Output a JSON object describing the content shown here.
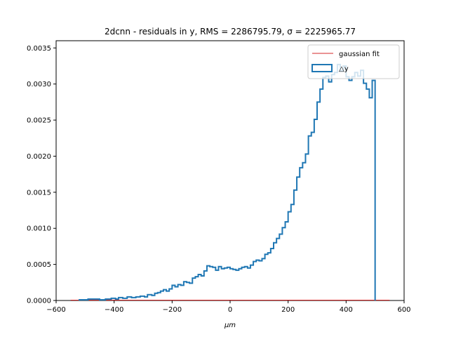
{
  "chart_data": {
    "type": "histogram",
    "title": "2dcnn - residuals in y, RMS = 2286795.79, σ = 2225965.77",
    "xlabel": "μm",
    "ylabel": "",
    "xlim": [
      -600,
      600
    ],
    "ylim": [
      0,
      0.0036
    ],
    "xticks": [
      "−600",
      "−400",
      "−200",
      "0",
      "200",
      "400",
      "600"
    ],
    "xtick_values": [
      -600,
      -400,
      -200,
      0,
      200,
      400,
      600
    ],
    "yticks": [
      "0.0000",
      "0.0005",
      "0.0010",
      "0.0015",
      "0.0020",
      "0.0025",
      "0.0030",
      "0.0035"
    ],
    "ytick_values": [
      0,
      0.0005,
      0.001,
      0.0015,
      0.002,
      0.0025,
      0.003,
      0.0035
    ],
    "legend": {
      "placement": "top-right",
      "entries": [
        "gaussian fit",
        "△y"
      ]
    },
    "series": [
      {
        "name": "△y",
        "style": "step",
        "color": "#1f77b4",
        "bin_edges": [
          -520,
          -500,
          -480,
          -460,
          -440,
          -420,
          -400,
          -380,
          -360,
          -340,
          -320,
          -300,
          -280,
          -260,
          -240,
          -220,
          -200,
          -180,
          -160,
          -140,
          -120,
          -100,
          -80,
          -60,
          -40,
          -20,
          0,
          20,
          40,
          60,
          80,
          100,
          120,
          140,
          160,
          180,
          200,
          220,
          240,
          260,
          280,
          300,
          320,
          340,
          360,
          380,
          400,
          420,
          440,
          460,
          480,
          500
        ],
        "values": [
          1e-05,
          2e-05,
          2e-05,
          1e-05,
          2e-05,
          3e-05,
          4e-05,
          4e-05,
          5e-05,
          6e-05,
          7e-05,
          0.0001,
          0.00012,
          0.00017,
          0.00021,
          0.00026,
          0.00025,
          0.00034,
          0.00038,
          0.00041,
          0.00046,
          0.00045,
          0.00043,
          0.00045,
          0.00044,
          0.00042,
          0.00044,
          0.00046,
          0.00048,
          0.00053,
          0.00058,
          0.00063,
          0.00072,
          0.00083,
          0.00096,
          0.00114,
          0.00132,
          0.00157,
          0.00186,
          0.00212,
          0.00262,
          0.00293,
          0.00313,
          0.00318,
          0.00328,
          0.00312,
          0.00318,
          0.003,
          0.00312,
          0.00285,
          0.00308
        ],
        "fine_steps": [
          [
            -520,
            1e-05
          ],
          [
            -500,
            1e-05
          ],
          [
            -490,
            2e-05
          ],
          [
            -470,
            2e-05
          ],
          [
            -450,
            1e-05
          ],
          [
            -430,
            2e-05
          ],
          [
            -410,
            3e-05
          ],
          [
            -395,
            2e-05
          ],
          [
            -385,
            4e-05
          ],
          [
            -370,
            3e-05
          ],
          [
            -355,
            5e-05
          ],
          [
            -340,
            4e-05
          ],
          [
            -325,
            5e-05
          ],
          [
            -310,
            6e-05
          ],
          [
            -295,
            5e-05
          ],
          [
            -285,
            8e-05
          ],
          [
            -270,
            7e-05
          ],
          [
            -260,
            0.0001
          ],
          [
            -250,
            0.00011
          ],
          [
            -240,
            0.00013
          ],
          [
            -230,
            0.00015
          ],
          [
            -220,
            0.00013
          ],
          [
            -210,
            0.00016
          ],
          [
            -200,
            0.00021
          ],
          [
            -190,
            0.00019
          ],
          [
            -180,
            0.00022
          ],
          [
            -170,
            0.00021
          ],
          [
            -160,
            0.00026
          ],
          [
            -150,
            0.00025
          ],
          [
            -140,
            0.00024
          ],
          [
            -130,
            0.00031
          ],
          [
            -120,
            0.00033
          ],
          [
            -110,
            0.00036
          ],
          [
            -100,
            0.00034
          ],
          [
            -90,
            0.00041
          ],
          [
            -80,
            0.00048
          ],
          [
            -70,
            0.00047
          ],
          [
            -60,
            0.00046
          ],
          [
            -50,
            0.00042
          ],
          [
            -40,
            0.00047
          ],
          [
            -30,
            0.00044
          ],
          [
            -20,
            0.00045
          ],
          [
            -10,
            0.00046
          ],
          [
            0,
            0.00044
          ],
          [
            10,
            0.00043
          ],
          [
            20,
            0.00042
          ],
          [
            30,
            0.00044
          ],
          [
            40,
            0.00046
          ],
          [
            50,
            0.00047
          ],
          [
            60,
            0.00045
          ],
          [
            70,
            0.00049
          ],
          [
            80,
            0.00054
          ],
          [
            90,
            0.00056
          ],
          [
            100,
            0.00055
          ],
          [
            110,
            0.00058
          ],
          [
            120,
            0.00064
          ],
          [
            130,
            0.00066
          ],
          [
            140,
            0.00072
          ],
          [
            150,
            0.0008
          ],
          [
            160,
            0.00086
          ],
          [
            170,
            0.00092
          ],
          [
            180,
            0.00101
          ],
          [
            190,
            0.00109
          ],
          [
            200,
            0.00123
          ],
          [
            210,
            0.00133
          ],
          [
            220,
            0.00153
          ],
          [
            230,
            0.00171
          ],
          [
            240,
            0.00184
          ],
          [
            250,
            0.00191
          ],
          [
            260,
            0.00203
          ],
          [
            270,
            0.00228
          ],
          [
            280,
            0.00233
          ],
          [
            290,
            0.00251
          ],
          [
            300,
            0.00275
          ],
          [
            310,
            0.00293
          ],
          [
            320,
            0.00309
          ],
          [
            330,
            0.00311
          ],
          [
            340,
            0.00303
          ],
          [
            350,
            0.00313
          ],
          [
            360,
            0.00316
          ],
          [
            370,
            0.00327
          ],
          [
            380,
            0.00318
          ],
          [
            390,
            0.00325
          ],
          [
            400,
            0.0031
          ],
          [
            410,
            0.00305
          ],
          [
            420,
            0.0031
          ],
          [
            430,
            0.00316
          ],
          [
            440,
            0.00311
          ],
          [
            450,
            0.00319
          ],
          [
            460,
            0.00301
          ],
          [
            470,
            0.00293
          ],
          [
            480,
            0.00281
          ],
          [
            490,
            0.00305
          ],
          [
            500,
            0
          ]
        ]
      },
      {
        "name": "gaussian fit",
        "style": "line",
        "color": "#d62728",
        "x": [
          -550,
          550
        ],
        "y": [
          0,
          0
        ]
      }
    ]
  }
}
